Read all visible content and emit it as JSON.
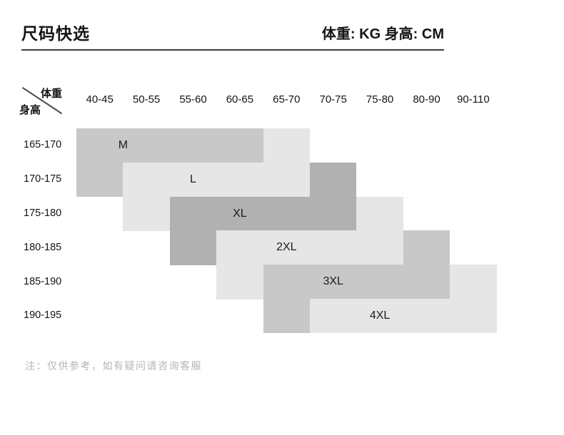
{
  "header": {
    "title": "尺码快选",
    "units": "体重: KG 身高: CM"
  },
  "axis": {
    "weight_label": "体重",
    "height_label": "身高"
  },
  "note": "注：仅供参考，如有疑问请咨询客服",
  "colors": {
    "light": "#e6e6e6",
    "medium": "#c8c8c8",
    "dark": "#b1b1b1",
    "text": "#141414",
    "note_text": "#b5b5b5",
    "divider": "#3c3c3c"
  },
  "chart_data": {
    "type": "heatmap",
    "title": "尺码快选",
    "x_axis_title": "体重 (KG)",
    "y_axis_title": "身高 (CM)",
    "x_categories": [
      "40-45",
      "50-55",
      "55-60",
      "60-65",
      "65-70",
      "70-75",
      "75-80",
      "80-90",
      "90-110"
    ],
    "y_categories": [
      "165-170",
      "170-175",
      "175-180",
      "180-185",
      "185-190",
      "190-195"
    ],
    "legend": "off",
    "grid": "off",
    "sizes": [
      {
        "label": "M",
        "shade": "medium",
        "blocks": [
          {
            "row": 1,
            "col_start": 1,
            "col_end": 4
          },
          {
            "row": 2,
            "col_start": 1,
            "col_end": 1
          }
        ],
        "label_pos": {
          "row": 1,
          "col": 1.0
        }
      },
      {
        "label": "L",
        "shade": "light",
        "blocks": [
          {
            "row": 1,
            "col_start": 5,
            "col_end": 5
          },
          {
            "row": 2,
            "col_start": 2,
            "col_end": 5
          },
          {
            "row": 3,
            "col_start": 2,
            "col_end": 2
          }
        ],
        "label_pos": {
          "row": 2,
          "col": 2.5
        }
      },
      {
        "label": "XL",
        "shade": "dark",
        "blocks": [
          {
            "row": 2,
            "col_start": 6,
            "col_end": 6
          },
          {
            "row": 3,
            "col_start": 3,
            "col_end": 6
          },
          {
            "row": 4,
            "col_start": 3,
            "col_end": 3
          }
        ],
        "label_pos": {
          "row": 3,
          "col": 3.5
        }
      },
      {
        "label": "2XL",
        "shade": "light",
        "blocks": [
          {
            "row": 3,
            "col_start": 7,
            "col_end": 7
          },
          {
            "row": 4,
            "col_start": 4,
            "col_end": 7
          },
          {
            "row": 5,
            "col_start": 4,
            "col_end": 4
          }
        ],
        "label_pos": {
          "row": 4,
          "col": 4.5
        }
      },
      {
        "label": "3XL",
        "shade": "medium",
        "blocks": [
          {
            "row": 4,
            "col_start": 8,
            "col_end": 8
          },
          {
            "row": 5,
            "col_start": 5,
            "col_end": 8
          },
          {
            "row": 6,
            "col_start": 5,
            "col_end": 5
          }
        ],
        "label_pos": {
          "row": 5,
          "col": 5.5
        }
      },
      {
        "label": "4XL",
        "shade": "light",
        "blocks": [
          {
            "row": 5,
            "col_start": 9,
            "col_end": 9
          },
          {
            "row": 6,
            "col_start": 6,
            "col_end": 9
          }
        ],
        "label_pos": {
          "row": 6,
          "col": 6.5
        }
      }
    ]
  }
}
